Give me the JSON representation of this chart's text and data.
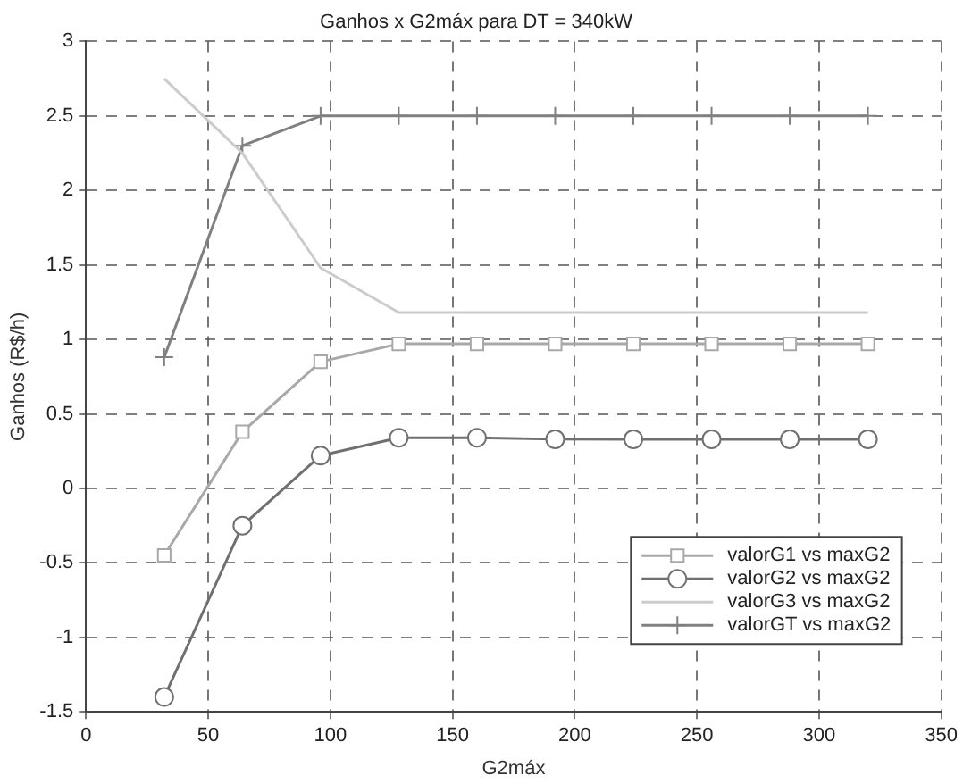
{
  "chart_data": {
    "type": "line",
    "title": "Ganhos x G2máx para DT = 340kW",
    "xlabel": "G2máx",
    "ylabel": "Ganhos (R$/h)",
    "x": [
      32,
      64,
      96,
      128,
      160,
      192,
      224,
      256,
      288,
      320
    ],
    "series": [
      {
        "name": "valorG1 vs maxG2",
        "color": "#a8a8a8",
        "marker": "square",
        "values": [
          -0.45,
          0.38,
          0.85,
          0.97,
          0.97,
          0.97,
          0.97,
          0.97,
          0.97,
          0.97
        ]
      },
      {
        "name": "valorG2 vs maxG2",
        "color": "#707070",
        "marker": "circle",
        "values": [
          -1.4,
          -0.25,
          0.22,
          0.34,
          0.34,
          0.33,
          0.33,
          0.33,
          0.33,
          0.33
        ]
      },
      {
        "name": "valorG3 vs maxG2",
        "color": "#cccccc",
        "marker": "none",
        "values": [
          2.75,
          2.25,
          1.48,
          1.18,
          1.18,
          1.18,
          1.18,
          1.18,
          1.18,
          1.18
        ]
      },
      {
        "name": "valorGT vs maxG2",
        "color": "#808080",
        "marker": "cross",
        "values": [
          0.88,
          2.3,
          2.5,
          2.5,
          2.5,
          2.5,
          2.5,
          2.5,
          2.5,
          2.5
        ]
      }
    ],
    "xlim": [
      0,
      350
    ],
    "xticks": [
      0,
      50,
      100,
      150,
      200,
      250,
      300,
      350
    ],
    "ylim": [
      -1.5,
      3
    ],
    "yticks": [
      -1.5,
      -1,
      -0.5,
      0,
      0.5,
      1,
      1.5,
      2,
      2.5,
      3
    ],
    "grid": true,
    "legend": "bottom right",
    "line_style": "solid"
  }
}
